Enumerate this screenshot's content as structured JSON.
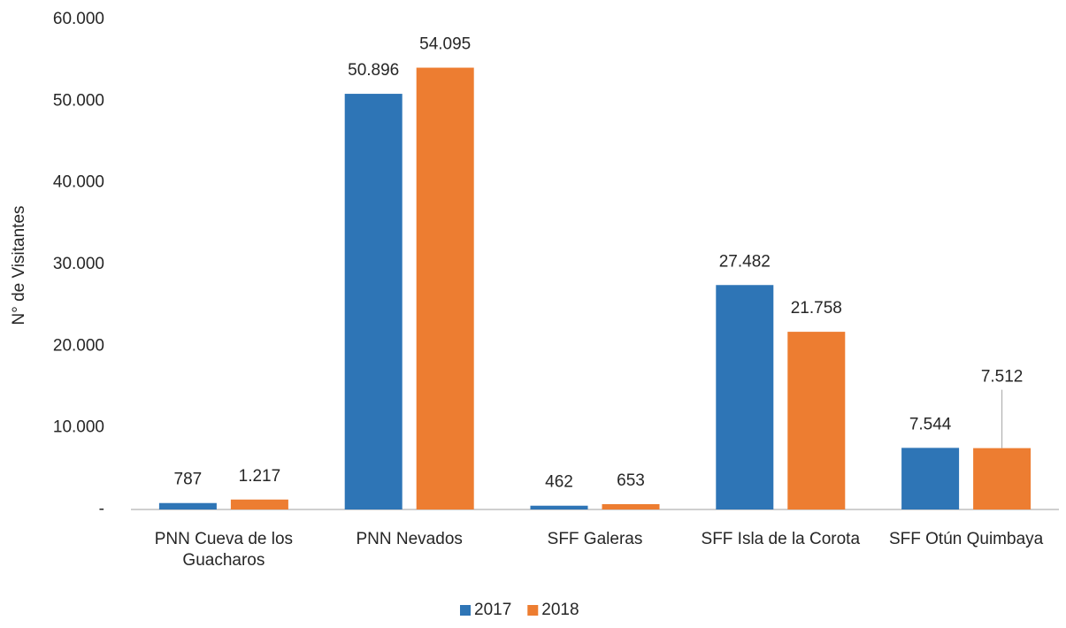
{
  "chart_data": {
    "type": "bar",
    "y_label": "N° de Visitantes",
    "categories": [
      "PNN Cueva de los Guacharos",
      "PNN Nevados",
      "SFF Galeras",
      "SFF Isla de la Corota",
      "SFF Otún Quimbaya"
    ],
    "series": [
      {
        "name": "2017",
        "color": "#2e75b6",
        "values": [
          787,
          50896,
          462,
          27482,
          7544
        ],
        "value_labels": [
          "787",
          "50.896",
          "462",
          "27.482",
          "7.544"
        ]
      },
      {
        "name": "2018",
        "color": "#ed7d31",
        "values": [
          1217,
          54095,
          653,
          21758,
          7512
        ],
        "value_labels": [
          "1.217",
          "54.095",
          "653",
          "21.758",
          "7.512"
        ]
      }
    ],
    "ylim": [
      0,
      60000
    ],
    "yticks": [
      {
        "value": 0,
        "label": "-"
      },
      {
        "value": 10000,
        "label": "10.000"
      },
      {
        "value": 20000,
        "label": "20.000"
      },
      {
        "value": 30000,
        "label": "30.000"
      },
      {
        "value": 40000,
        "label": "40.000"
      },
      {
        "value": 50000,
        "label": "50.000"
      },
      {
        "value": 60000,
        "label": "60.000"
      }
    ],
    "grid": false,
    "legend": "bottom"
  }
}
